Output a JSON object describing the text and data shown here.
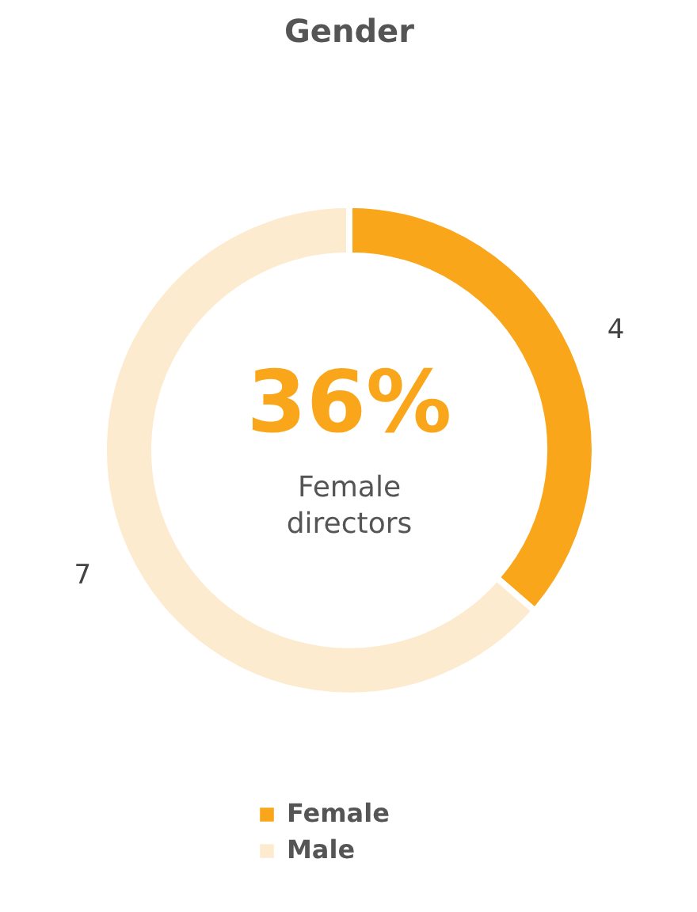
{
  "chart_data": {
    "type": "donut",
    "title": "Gender",
    "categories": [
      "Female",
      "Male"
    ],
    "values": [
      4,
      7
    ],
    "colors": [
      "#faa61a",
      "#fdebd0"
    ],
    "data_labels": true,
    "legend": "bottom",
    "annotations": [
      "36%",
      "Female\ndirectors"
    ]
  }
}
